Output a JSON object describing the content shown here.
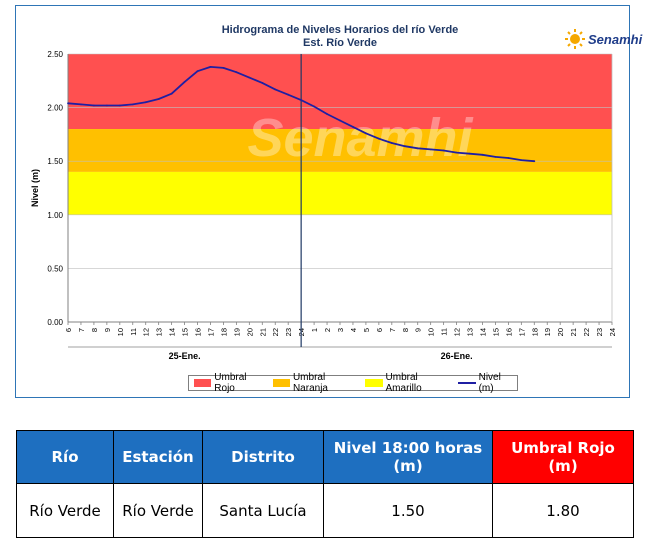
{
  "chart_data": {
    "type": "line",
    "title": "Hidrograma de Niveles Horarios del río Verde",
    "subtitle": "Est. Río Verde",
    "ylabel": "Nivel (m)",
    "ylim": [
      0,
      2.5
    ],
    "yticks": [
      "0.00",
      "0.50",
      "1.00",
      "1.50",
      "2.00",
      "2.50"
    ],
    "xtick_labels": [
      "6",
      "7",
      "8",
      "9",
      "10",
      "11",
      "12",
      "13",
      "14",
      "15",
      "16",
      "17",
      "18",
      "19",
      "20",
      "21",
      "22",
      "23",
      "24",
      "1",
      "2",
      "3",
      "4",
      "5",
      "6",
      "7",
      "8",
      "9",
      "10",
      "11",
      "12",
      "13",
      "14",
      "15",
      "16",
      "17",
      "18",
      "19",
      "20",
      "21",
      "22",
      "23",
      "24"
    ],
    "day_labels": [
      "25-Ene.",
      "26-Ene."
    ],
    "thresholds": [
      {
        "name": "Umbral Rojo",
        "from": 1.8,
        "to": 2.5,
        "color": "#ff5050"
      },
      {
        "name": "Umbral Naranja",
        "from": 1.4,
        "to": 1.8,
        "color": "#ffc000"
      },
      {
        "name": "Umbral Amarillo",
        "from": 1.0,
        "to": 1.4,
        "color": "#ffff00"
      }
    ],
    "series": [
      {
        "name": "Nivel (m)",
        "color": "#1f1fa3",
        "x": [
          "25 06:00",
          "25 07:00",
          "25 08:00",
          "25 09:00",
          "25 10:00",
          "25 11:00",
          "25 12:00",
          "25 13:00",
          "25 14:00",
          "25 15:00",
          "25 16:00",
          "25 17:00",
          "25 18:00",
          "25 19:00",
          "25 20:00",
          "25 21:00",
          "25 22:00",
          "25 23:00",
          "26 00:00",
          "26 01:00",
          "26 02:00",
          "26 03:00",
          "26 04:00",
          "26 05:00",
          "26 06:00",
          "26 07:00",
          "26 08:00",
          "26 09:00",
          "26 10:00",
          "26 11:00",
          "26 12:00",
          "26 13:00",
          "26 14:00",
          "26 15:00",
          "26 16:00",
          "26 17:00",
          "26 18:00"
        ],
        "values": [
          2.04,
          2.03,
          2.02,
          2.02,
          2.02,
          2.03,
          2.05,
          2.08,
          2.13,
          2.24,
          2.34,
          2.38,
          2.37,
          2.33,
          2.28,
          2.23,
          2.17,
          2.12,
          2.07,
          2.01,
          1.94,
          1.88,
          1.82,
          1.76,
          1.71,
          1.67,
          1.64,
          1.62,
          1.61,
          1.6,
          1.58,
          1.57,
          1.56,
          1.54,
          1.53,
          1.51,
          1.5
        ]
      }
    ]
  },
  "logo": {
    "text": "Senamhi",
    "watermark": "Senamhi"
  },
  "legend": {
    "rojo": "Umbral Rojo",
    "naranja": "Umbral Naranja",
    "amarillo": "Umbral Amarillo",
    "nivel": "Nivel (m)"
  },
  "table": {
    "headers": [
      "Río",
      "Estación",
      "Distrito",
      "Nivel 18:00 horas (m)",
      "Umbral Rojo (m)"
    ],
    "row": [
      "Río Verde",
      "Río Verde",
      "Santa Lucía",
      "1.50",
      "1.80"
    ]
  }
}
